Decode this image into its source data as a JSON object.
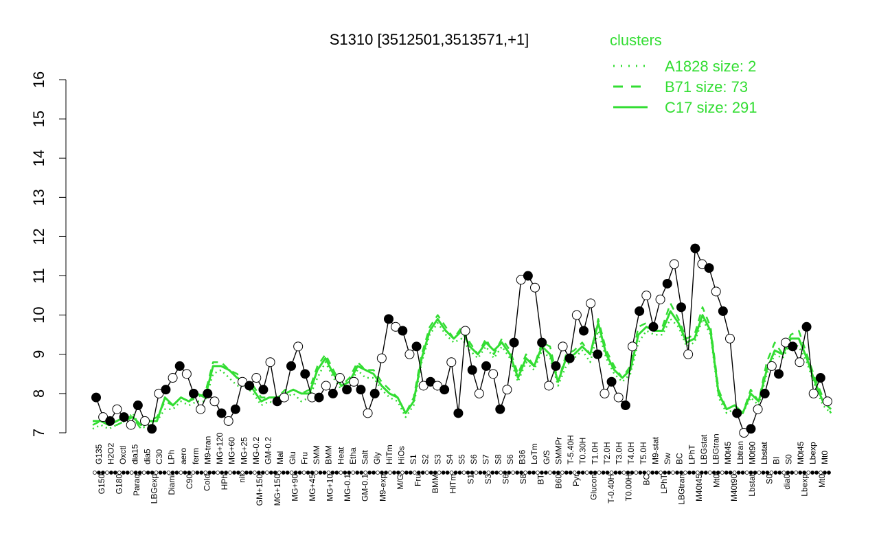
{
  "chart_data": {
    "type": "line",
    "title": "S1310 [3512501,3513571,+1]",
    "xlabel": "",
    "ylabel": "",
    "ylim": [
      7,
      16
    ],
    "yticks": [
      7,
      8,
      9,
      10,
      11,
      12,
      13,
      14,
      15,
      16
    ],
    "grid": false,
    "legend": {
      "title": "clusters",
      "placement": "top-right",
      "color": "#33dd33",
      "entries": [
        {
          "label": "A1828 size: 2",
          "style": "dotted"
        },
        {
          "label": "B71 size: 73",
          "style": "dashed"
        },
        {
          "label": "C17 size: 291",
          "style": "solid"
        }
      ]
    },
    "x_top_labels": [
      "G135",
      "H2O2",
      "Oxctl",
      "dia15",
      "dia5",
      "C30",
      "LPh",
      "aero",
      "ferm",
      "M9-tran",
      "MG+120",
      "MG+60",
      "MG+25",
      "MG-0.2",
      "GM-0.2",
      "Mal",
      "Glu",
      "Fru",
      "SMM",
      "BMM",
      "Heat",
      "Etha",
      "Salt",
      "Gly",
      "HiTm",
      "HiOs",
      "S1",
      "S2",
      "S3",
      "S4",
      "S5",
      "S6",
      "S7",
      "S8",
      "S6",
      "B36",
      "LoTm",
      "G/S",
      "SMMPr",
      "T-5.40H",
      "T0.30H",
      "T1.0H",
      "T2.0H",
      "T3.0H",
      "T4.0H",
      "T5.0H",
      "M9-stat",
      "Sw",
      "BC",
      "LPhT",
      "LBGstat",
      "LBGtran",
      "M0t45",
      "Lbtran",
      "M0t90",
      "Lbstat",
      "BI",
      "S0",
      "M0t45",
      "Lbexp",
      "Mt0"
    ],
    "x_bottom_labels": [
      "G150",
      "G180",
      "Paraq",
      "LBGexp",
      "Diami",
      "C90",
      "Cold",
      "HPh",
      "nit",
      "GM+150",
      "MG+150",
      "MG+90",
      "MG+45",
      "MG+10",
      "MG-0.1",
      "GM-0.1",
      "M9-exp",
      "M/G",
      "Fru",
      "BMM",
      "HiTm",
      "S1",
      "S3",
      "S6",
      "S8",
      "BT",
      "B60",
      "Pyr",
      "Glucon",
      "T-0.40H",
      "T0.00H",
      "BC",
      "LPhT",
      "LBGtran",
      "M40t45",
      "Mt0",
      "M40t90",
      "Lbstat",
      "S0",
      "dia0",
      "Lbexp",
      "Mt0"
    ],
    "series": [
      {
        "style": "solid",
        "color": "#33dd33",
        "values": [
          7.3,
          7.3,
          7.2,
          7.3,
          7.4,
          7.4,
          7.2,
          7.3,
          7.3,
          7.9,
          7.7,
          7.9,
          7.8,
          8.0,
          7.9,
          8.7,
          8.7,
          8.6,
          8.4,
          8.3,
          8.1,
          7.8,
          7.9,
          7.9,
          8.0,
          8.1,
          8.0,
          8.0,
          8.6,
          8.9,
          8.5,
          8.2,
          8.3,
          8.7,
          8.6,
          8.5,
          8.2,
          8.0,
          7.9,
          7.5,
          7.8,
          8.9,
          9.6,
          9.9,
          9.6,
          9.4,
          9.6,
          9.2,
          9.0,
          9.3,
          9.1,
          9.3,
          9.0,
          8.4,
          8.9,
          8.7,
          9.2,
          9.0,
          8.3,
          8.9,
          9.0,
          9.2,
          9.0,
          9.8,
          9.0,
          8.6,
          8.4,
          8.6,
          9.5,
          9.7,
          9.6,
          9.6,
          10.1,
          9.8,
          9.3,
          9.4,
          10.0,
          9.6,
          8.0,
          7.6,
          7.7,
          7.5,
          8.0,
          7.8,
          8.6,
          9.1,
          9.0,
          9.4,
          9.4,
          8.9,
          8.3,
          7.8,
          7.6
        ]
      },
      {
        "style": "dashed",
        "color": "#33dd33",
        "values": [
          7.2,
          7.3,
          7.2,
          7.2,
          7.3,
          7.4,
          7.1,
          7.3,
          7.4,
          7.8,
          7.7,
          7.9,
          7.8,
          7.9,
          8.0,
          8.8,
          8.8,
          8.6,
          8.5,
          8.3,
          8.2,
          7.9,
          7.9,
          7.9,
          8.1,
          8.1,
          8.0,
          8.1,
          8.7,
          9.0,
          8.6,
          8.2,
          8.4,
          8.8,
          8.6,
          8.6,
          8.3,
          8.1,
          7.9,
          7.5,
          7.9,
          9.0,
          9.7,
          10.0,
          9.7,
          9.4,
          9.7,
          9.3,
          9.0,
          9.4,
          9.0,
          9.4,
          9.1,
          8.5,
          9.0,
          8.7,
          9.3,
          9.2,
          8.3,
          9.0,
          9.1,
          9.3,
          9.0,
          9.9,
          9.1,
          8.7,
          8.4,
          8.7,
          9.7,
          9.8,
          9.7,
          9.7,
          10.3,
          9.9,
          9.4,
          9.5,
          10.2,
          9.7,
          8.1,
          7.6,
          7.7,
          7.5,
          8.1,
          7.8,
          8.8,
          9.3,
          9.0,
          9.5,
          9.6,
          9.0,
          8.4,
          7.9,
          7.5
        ]
      },
      {
        "style": "dotted",
        "color": "#33dd33",
        "values": [
          7.1,
          7.2,
          7.1,
          7.2,
          7.3,
          7.5,
          7.1,
          7.2,
          7.3,
          7.6,
          7.6,
          7.8,
          7.7,
          7.8,
          7.8,
          8.5,
          8.6,
          8.4,
          8.2,
          8.2,
          8.0,
          7.7,
          7.8,
          7.7,
          7.9,
          8.0,
          7.8,
          7.9,
          8.4,
          8.8,
          8.4,
          8.1,
          8.2,
          8.6,
          8.4,
          8.4,
          8.1,
          7.9,
          7.8,
          7.4,
          7.7,
          8.8,
          9.5,
          9.8,
          9.5,
          9.3,
          9.4,
          9.1,
          8.9,
          9.2,
          8.9,
          9.2,
          8.9,
          8.3,
          8.8,
          8.6,
          9.1,
          8.9,
          8.2,
          8.7,
          8.9,
          9.1,
          8.8,
          9.6,
          8.9,
          8.5,
          8.3,
          8.5,
          9.3,
          9.6,
          9.5,
          9.5,
          9.9,
          9.7,
          9.2,
          9.3,
          9.9,
          9.5,
          7.9,
          7.5,
          7.6,
          7.5,
          7.9,
          7.7,
          8.5,
          9.0,
          8.9,
          9.3,
          9.2,
          8.8,
          8.2,
          7.7,
          7.5
        ]
      },
      {
        "style": "points",
        "color": "#000000",
        "values": [
          7.9,
          7.4,
          7.3,
          7.6,
          7.4,
          7.2,
          7.7,
          7.3,
          7.1,
          8.0,
          8.1,
          8.4,
          8.7,
          8.5,
          8.0,
          7.6,
          8.0,
          7.8,
          7.5,
          7.3,
          7.6,
          8.3,
          8.2,
          8.4,
          8.1,
          8.8,
          7.8,
          7.9,
          8.7,
          9.2,
          8.5,
          7.9,
          7.9,
          8.2,
          8.0,
          8.4,
          8.1,
          8.3,
          8.1,
          7.5,
          8.0,
          8.9,
          9.9,
          9.7,
          9.6,
          9.0,
          9.2,
          8.2,
          8.3,
          8.2,
          8.1,
          8.8,
          7.5,
          9.6,
          8.6,
          8.0,
          8.7,
          8.5,
          7.6,
          8.1,
          9.3,
          10.9,
          11.0,
          10.7,
          9.3,
          8.2,
          8.7,
          9.2,
          8.9,
          10.0,
          9.6,
          10.3,
          9.0,
          8.0,
          8.3,
          7.9,
          7.7,
          9.2,
          10.1,
          10.5,
          9.7,
          10.4,
          10.8,
          11.3,
          10.2,
          9.0,
          11.7,
          11.3,
          11.2,
          10.6,
          10.1,
          9.4,
          7.5,
          7.0,
          7.1,
          7.6,
          8.0,
          8.7,
          8.5,
          9.3,
          9.2,
          8.8,
          9.7,
          8.0,
          8.4,
          7.8
        ]
      }
    ]
  }
}
